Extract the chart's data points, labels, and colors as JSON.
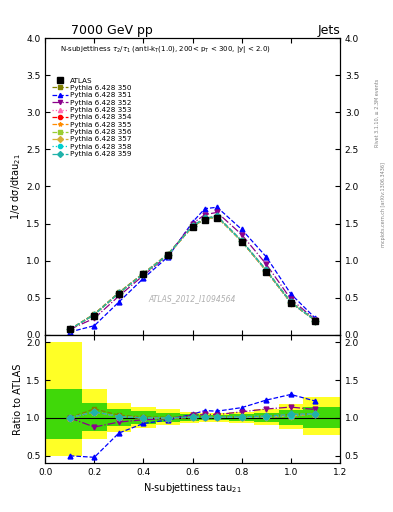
{
  "title": "7000 GeV pp",
  "title_right": "Jets",
  "subplot_title": "N-subjettiness $\\tau_2/\\tau_1$ (anti-k$_\\mathrm{T}$(1.0), 200< p$_\\mathrm{T}$ < 300, |y| < 2.0)",
  "watermark": "ATLAS_2012_I1094564",
  "right_label": "mcplots.cern.ch [arXiv:1306.3436]",
  "right_label2": "Rivet 3.1.10, ≥ 2.3M events",
  "xlabel": "N-subjettiness tau$_{21}$",
  "ylabel": "1/σ dσ/dtau$_{21}$",
  "ratio_ylabel": "Ratio to ATLAS",
  "x_data": [
    0.1,
    0.2,
    0.3,
    0.4,
    0.5,
    0.6,
    0.65,
    0.7,
    0.8,
    0.9,
    1.0,
    1.1
  ],
  "atlas_y": [
    0.07,
    0.25,
    0.55,
    0.82,
    1.08,
    1.45,
    1.55,
    1.58,
    1.25,
    0.85,
    0.42,
    0.18
  ],
  "py350_y": [
    0.07,
    0.28,
    0.57,
    0.83,
    1.09,
    1.47,
    1.57,
    1.6,
    1.26,
    0.87,
    0.44,
    0.19
  ],
  "py351_y": [
    0.035,
    0.12,
    0.44,
    0.76,
    1.05,
    1.52,
    1.7,
    1.72,
    1.42,
    1.05,
    0.55,
    0.22
  ],
  "py352_y": [
    0.07,
    0.22,
    0.52,
    0.8,
    1.07,
    1.5,
    1.62,
    1.65,
    1.35,
    0.95,
    0.48,
    0.2
  ],
  "py353_y": [
    0.07,
    0.27,
    0.56,
    0.82,
    1.08,
    1.46,
    1.56,
    1.59,
    1.27,
    0.87,
    0.43,
    0.19
  ],
  "py354_y": [
    0.07,
    0.27,
    0.56,
    0.82,
    1.08,
    1.46,
    1.56,
    1.59,
    1.26,
    0.86,
    0.43,
    0.19
  ],
  "py355_y": [
    0.07,
    0.27,
    0.56,
    0.82,
    1.08,
    1.46,
    1.56,
    1.59,
    1.26,
    0.86,
    0.43,
    0.19
  ],
  "py356_y": [
    0.07,
    0.27,
    0.56,
    0.82,
    1.08,
    1.46,
    1.56,
    1.59,
    1.26,
    0.87,
    0.44,
    0.19
  ],
  "py357_y": [
    0.07,
    0.27,
    0.56,
    0.82,
    1.08,
    1.46,
    1.56,
    1.59,
    1.26,
    0.86,
    0.43,
    0.19
  ],
  "py358_y": [
    0.07,
    0.27,
    0.56,
    0.82,
    1.08,
    1.46,
    1.56,
    1.59,
    1.26,
    0.86,
    0.43,
    0.19
  ],
  "py359_y": [
    0.07,
    0.27,
    0.56,
    0.82,
    1.08,
    1.47,
    1.57,
    1.6,
    1.27,
    0.87,
    0.44,
    0.19
  ],
  "band_x_edges": [
    0.0,
    0.15,
    0.25,
    0.35,
    0.45,
    0.55,
    0.625,
    0.675,
    0.75,
    0.85,
    0.95,
    1.05,
    1.2
  ],
  "band_yellow_lo": [
    0.5,
    0.72,
    0.82,
    0.87,
    0.9,
    0.93,
    0.94,
    0.94,
    0.93,
    0.9,
    0.85,
    0.78
  ],
  "band_yellow_hi": [
    2.0,
    1.38,
    1.2,
    1.15,
    1.12,
    1.08,
    1.07,
    1.07,
    1.08,
    1.12,
    1.18,
    1.28
  ],
  "band_green_lo": [
    0.72,
    0.83,
    0.89,
    0.92,
    0.94,
    0.96,
    0.97,
    0.97,
    0.96,
    0.94,
    0.91,
    0.87
  ],
  "band_green_hi": [
    1.38,
    1.2,
    1.12,
    1.09,
    1.07,
    1.05,
    1.04,
    1.04,
    1.05,
    1.07,
    1.1,
    1.15
  ],
  "colors": {
    "py350": "#808000",
    "py351": "#0000ff",
    "py352": "#8b008b",
    "py353": "#ff69b4",
    "py354": "#ff0000",
    "py355": "#ff8c00",
    "py356": "#9acd32",
    "py357": "#d4af37",
    "py358": "#00ced1",
    "py359": "#20b2aa"
  },
  "xlim": [
    0.0,
    1.2
  ],
  "ylim_main": [
    0.0,
    4.0
  ],
  "ylim_ratio": [
    0.4,
    2.1
  ],
  "main_yticks": [
    0.0,
    0.5,
    1.0,
    1.5,
    2.0,
    2.5,
    3.0,
    3.5,
    4.0
  ],
  "ratio_yticks": [
    0.5,
    1.0,
    1.5,
    2.0
  ],
  "xticks": [
    0.0,
    0.2,
    0.4,
    0.6,
    0.8,
    1.0,
    1.2
  ]
}
